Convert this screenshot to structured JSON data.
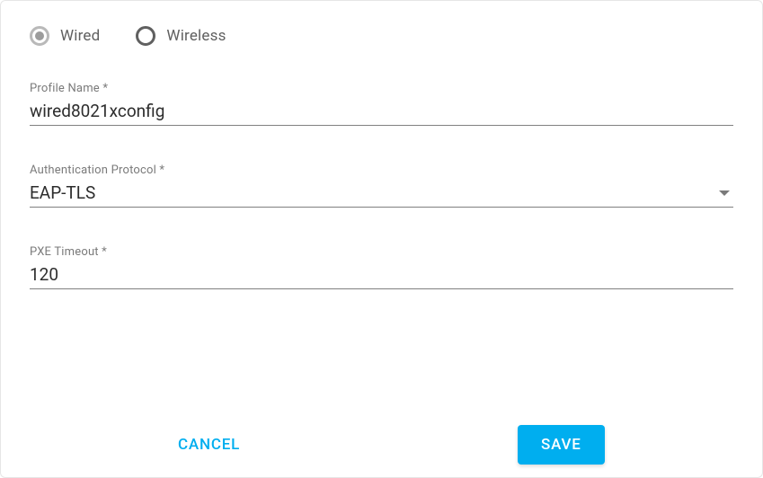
{
  "colors": {
    "accent": "#00aeef",
    "text_primary": "#2d2d2d",
    "text_secondary": "#7a7a7a",
    "radio_selected_border": "#b9b9b9",
    "radio_unselected_border": "#606060",
    "underline": "#808080",
    "card_border": "#e6e6e6"
  },
  "radios": {
    "wired": {
      "label": "Wired",
      "selected": true
    },
    "wireless": {
      "label": "Wireless",
      "selected": false
    }
  },
  "fields": {
    "profile_name": {
      "label": "Profile Name *",
      "value": "wired8021xconfig"
    },
    "auth_protocol": {
      "label": "Authentication Protocol *",
      "value": "EAP-TLS"
    },
    "pxe_timeout": {
      "label": "PXE Timeout *",
      "value": "120"
    }
  },
  "buttons": {
    "cancel": "CANCEL",
    "save": "SAVE"
  }
}
